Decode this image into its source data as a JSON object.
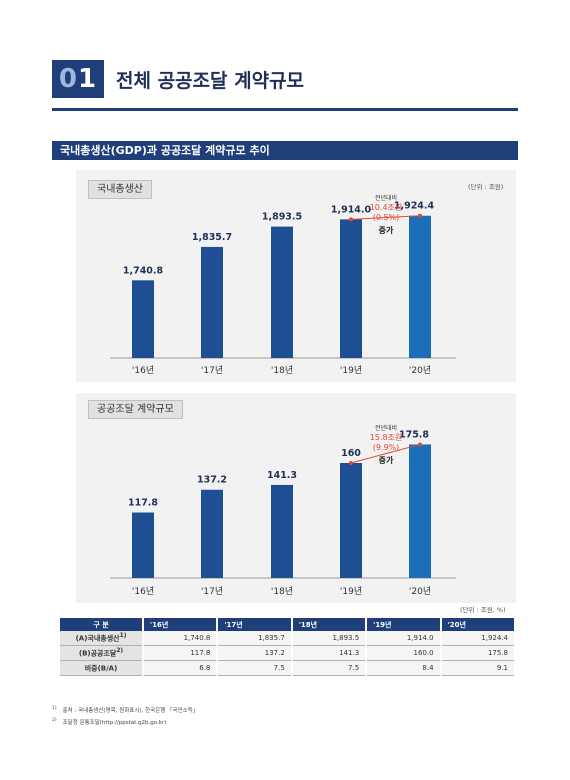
{
  "header": {
    "section_number": "01",
    "section_title": "전체 공공조달 계약규모"
  },
  "figure_title": "국내총생산(GDP)과 공공조달 계약규모 추이",
  "colors": {
    "dark_navy": "#1f3f7a",
    "bar_dark": "#1e4f93",
    "bar_last": "#1a6fb8",
    "annotation_red": "#e24a33"
  },
  "chart_data": [
    {
      "type": "bar",
      "title": "국내총생산",
      "unit": "(단위 : 조원)",
      "categories": [
        "'16년",
        "'17년",
        "'18년",
        "'19년",
        "'20년"
      ],
      "values": [
        1740.8,
        1835.7,
        1893.5,
        1914.0,
        1924.4
      ],
      "value_labels": [
        "1,740.8",
        "1,835.7",
        "1,893.5",
        "1,914.0",
        "1,924.4"
      ],
      "ylim": [
        1520,
        1935
      ],
      "annotation": {
        "line1": "전년대비",
        "line2": "10.4조원",
        "line3": "(0.5%)",
        "line4": "증가"
      }
    },
    {
      "type": "bar",
      "title": "공공조달 계약규모",
      "unit": "",
      "categories": [
        "'16년",
        "'17년",
        "'18년",
        "'19년",
        "'20년"
      ],
      "values": [
        117.8,
        137.2,
        141.3,
        160,
        175.8
      ],
      "value_labels": [
        "117.8",
        "137.2",
        "141.3",
        "160",
        "175.8"
      ],
      "ylim": [
        62,
        183
      ],
      "annotation": {
        "line1": "전년대비",
        "line2": "15.8조원",
        "line3": "(9.9%)",
        "line4": "증가"
      }
    }
  ],
  "table": {
    "unit": "(단위 : 조원, %)",
    "headers": [
      "구 분",
      "'16년",
      "'17년",
      "'18년",
      "'19년",
      "'20년"
    ],
    "rows": [
      {
        "label": "(A)국내총생산",
        "sup": "1)",
        "values": [
          "1,740.8",
          "1,835.7",
          "1,893.5",
          "1,914.0",
          "1,924.4"
        ]
      },
      {
        "label": "(B)공공조달",
        "sup": "2)",
        "values": [
          "117.8",
          "137.2",
          "141.3",
          "160.0",
          "175.8"
        ]
      },
      {
        "label": "비중(B/A)",
        "sup": "",
        "values": [
          "6.8",
          "7.5",
          "7.5",
          "8.4",
          "9.1"
        ]
      }
    ]
  },
  "footnotes": [
    {
      "mark": "1)",
      "text": "출처 : 국내총생산(명목, 원화표시), 한국은행 「국민소득」"
    },
    {
      "mark": "2)",
      "text": "조달청 온통조달(http://ppstat.g2b.go.kr)"
    }
  ]
}
